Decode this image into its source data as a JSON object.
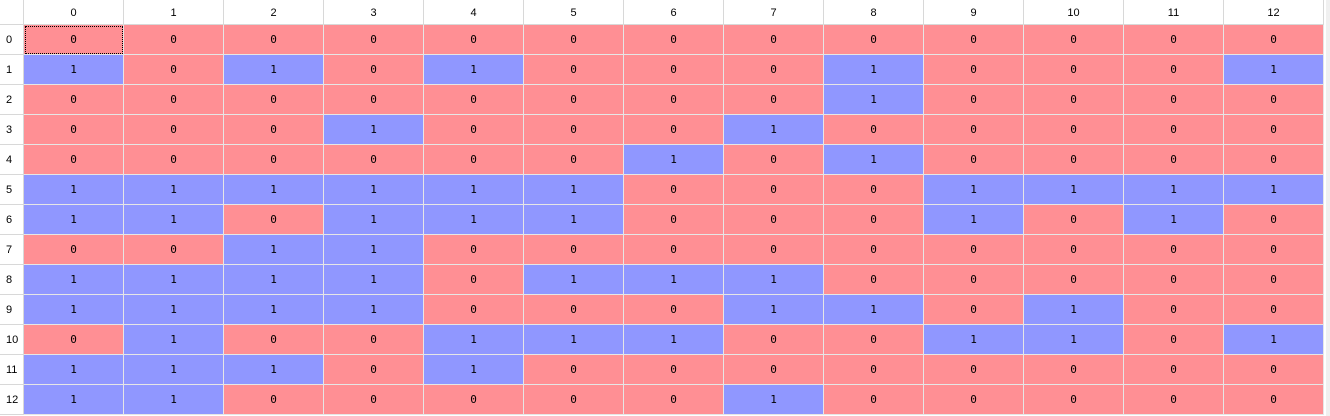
{
  "table": {
    "column_headers": [
      "0",
      "1",
      "2",
      "3",
      "4",
      "5",
      "6",
      "7",
      "8",
      "9",
      "10",
      "11",
      "12"
    ],
    "row_headers": [
      "0",
      "1",
      "2",
      "3",
      "4",
      "5",
      "6",
      "7",
      "8",
      "9",
      "10",
      "11",
      "12"
    ],
    "rows": [
      [
        "0",
        "0",
        "0",
        "0",
        "0",
        "0",
        "0",
        "0",
        "0",
        "0",
        "0",
        "0",
        "0"
      ],
      [
        "1",
        "0",
        "1",
        "0",
        "1",
        "0",
        "0",
        "0",
        "1",
        "0",
        "0",
        "0",
        "1"
      ],
      [
        "0",
        "0",
        "0",
        "0",
        "0",
        "0",
        "0",
        "0",
        "1",
        "0",
        "0",
        "0",
        "0"
      ],
      [
        "0",
        "0",
        "0",
        "1",
        "0",
        "0",
        "0",
        "1",
        "0",
        "0",
        "0",
        "0",
        "0"
      ],
      [
        "0",
        "0",
        "0",
        "0",
        "0",
        "0",
        "1",
        "0",
        "1",
        "0",
        "0",
        "0",
        "0"
      ],
      [
        "1",
        "1",
        "1",
        "1",
        "1",
        "1",
        "0",
        "0",
        "0",
        "1",
        "1",
        "1",
        "1"
      ],
      [
        "1",
        "1",
        "0",
        "1",
        "1",
        "1",
        "0",
        "0",
        "0",
        "1",
        "0",
        "1",
        "0"
      ],
      [
        "0",
        "0",
        "1",
        "1",
        "0",
        "0",
        "0",
        "0",
        "0",
        "0",
        "0",
        "0",
        "0"
      ],
      [
        "1",
        "1",
        "1",
        "1",
        "0",
        "1",
        "1",
        "1",
        "0",
        "0",
        "0",
        "0",
        "0"
      ],
      [
        "1",
        "1",
        "1",
        "1",
        "0",
        "0",
        "0",
        "1",
        "1",
        "0",
        "1",
        "0",
        "0"
      ],
      [
        "0",
        "1",
        "0",
        "0",
        "1",
        "1",
        "1",
        "0",
        "0",
        "1",
        "1",
        "0",
        "1"
      ],
      [
        "1",
        "1",
        "1",
        "0",
        "1",
        "0",
        "0",
        "0",
        "0",
        "0",
        "0",
        "0",
        "0"
      ],
      [
        "1",
        "1",
        "0",
        "0",
        "0",
        "0",
        "0",
        "1",
        "0",
        "0",
        "0",
        "0",
        "0"
      ]
    ],
    "selected_cell": {
      "row": 0,
      "col": 0
    }
  },
  "colors": {
    "zero_cell": "#ff8f94",
    "one_cell": "#9097ff"
  }
}
